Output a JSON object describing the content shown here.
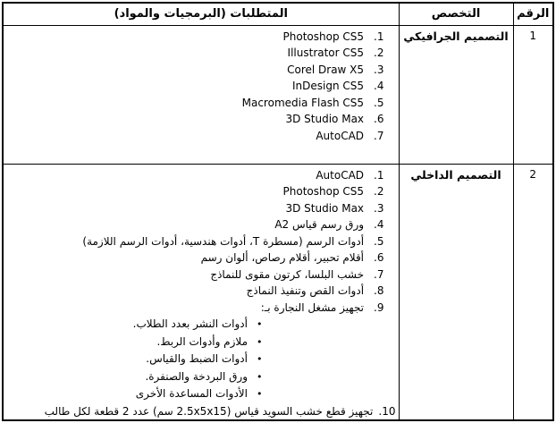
{
  "bullet_char": "•",
  "header": {
    "number": "الرقم",
    "specialization": "التخصص",
    "requirements": "المتطلبات (البرمجيات والمواد)"
  },
  "r1": {
    "number": "1",
    "specialization": "التصميم الجرافيكي",
    "items": [
      {
        "n": "1.",
        "t": "Photoshop CS5"
      },
      {
        "n": "2.",
        "t": "Illustrator CS5"
      },
      {
        "n": "3.",
        "t": "Corel Draw X5"
      },
      {
        "n": "4.",
        "t": "InDesign CS5"
      },
      {
        "n": "5.",
        "t": "Macromedia Flash CS5"
      },
      {
        "n": "6.",
        "t": "3D Studio Max"
      },
      {
        "n": "7.",
        "t": "AutoCAD"
      }
    ]
  },
  "r2": {
    "number": "2",
    "specialization": "التصميم الداخلي",
    "items": [
      {
        "n": "1.",
        "t": "AutoCAD"
      },
      {
        "n": "2.",
        "t": "Photoshop CS5"
      },
      {
        "n": "3.",
        "t": "3D Studio Max"
      },
      {
        "n": "4.",
        "t": "ورق رسم قياس A2"
      },
      {
        "n": "5.",
        "t": "أدوات الرسم (مسطرة T، أدوات هندسية، أدوات الرسم اللازمة)"
      },
      {
        "n": "6.",
        "t": "أقلام تحبير، أقلام رصاص، ألوان رسم"
      },
      {
        "n": "7.",
        "t": "خشب البلسا، كرتون مقوى للنماذج"
      },
      {
        "n": "8.",
        "t": "أدوات القص وتنفيذ النماذج"
      },
      {
        "n": "9.",
        "t": "تجهيز مشغل النجارة بـ:"
      }
    ],
    "bullets": [
      "أدوات النشر بعدد الطلاب.",
      "ملازم وأدوات الربط.",
      "أدوات الضبط والقياس.",
      "ورق البردخة والصنفرة.",
      "الأدوات المساعدة الأخرى"
    ],
    "final_item": {
      "n": "10.",
      "t": "تجهيز قطع خشب السويد قياس (2.5x5x15 سم) عدد 2 قطعة لكل طالب"
    }
  }
}
